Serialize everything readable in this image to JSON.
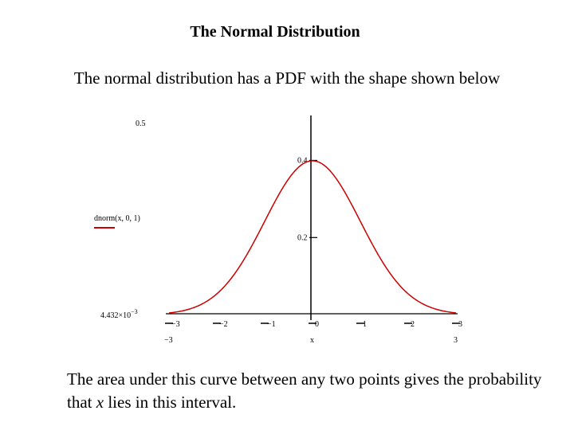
{
  "header": {
    "title": "The Normal Distribution",
    "intro": "The normal distribution has a PDF with the shape shown below"
  },
  "footer": {
    "note_prefix": "The area under this curve between any two points gives the probability that ",
    "note_var": "x",
    "note_suffix": " lies in this interval."
  },
  "chart_data": {
    "type": "line",
    "function": "dnorm(x, 0, 1)",
    "xlabel": "x",
    "xlim": [
      -3,
      3
    ],
    "ylim": [
      0.004432,
      0.5
    ],
    "x_min_label": "−3",
    "x_max_label": "3",
    "y_max_label": "0.5",
    "y_min_label": "4.432×10",
    "y_min_exp": "−3",
    "x_ticks": [
      {
        "value": -3,
        "label": "−3"
      },
      {
        "value": -2,
        "label": "−2"
      },
      {
        "value": -1,
        "label": "−1"
      },
      {
        "value": 0,
        "label": "0"
      },
      {
        "value": 1,
        "label": "1"
      },
      {
        "value": 2,
        "label": "2"
      },
      {
        "value": 3,
        "label": "3"
      }
    ],
    "y_ticks": [
      {
        "value": 0.2,
        "label": "0.2"
      },
      {
        "value": 0.4,
        "label": "0.4"
      }
    ],
    "series": [
      {
        "name": "dnorm(x, 0, 1)",
        "color": "#cc0000",
        "mean": 0,
        "sd": 1,
        "x": [
          -3,
          -2.5,
          -2,
          -1.5,
          -1,
          -0.5,
          0,
          0.5,
          1,
          1.5,
          2,
          2.5,
          3
        ],
        "y": [
          0.00443,
          0.01753,
          0.05399,
          0.12952,
          0.24197,
          0.35207,
          0.39894,
          0.35207,
          0.24197,
          0.12952,
          0.05399,
          0.01753,
          0.00443
        ]
      }
    ],
    "legend_position": "left",
    "grid": false
  }
}
